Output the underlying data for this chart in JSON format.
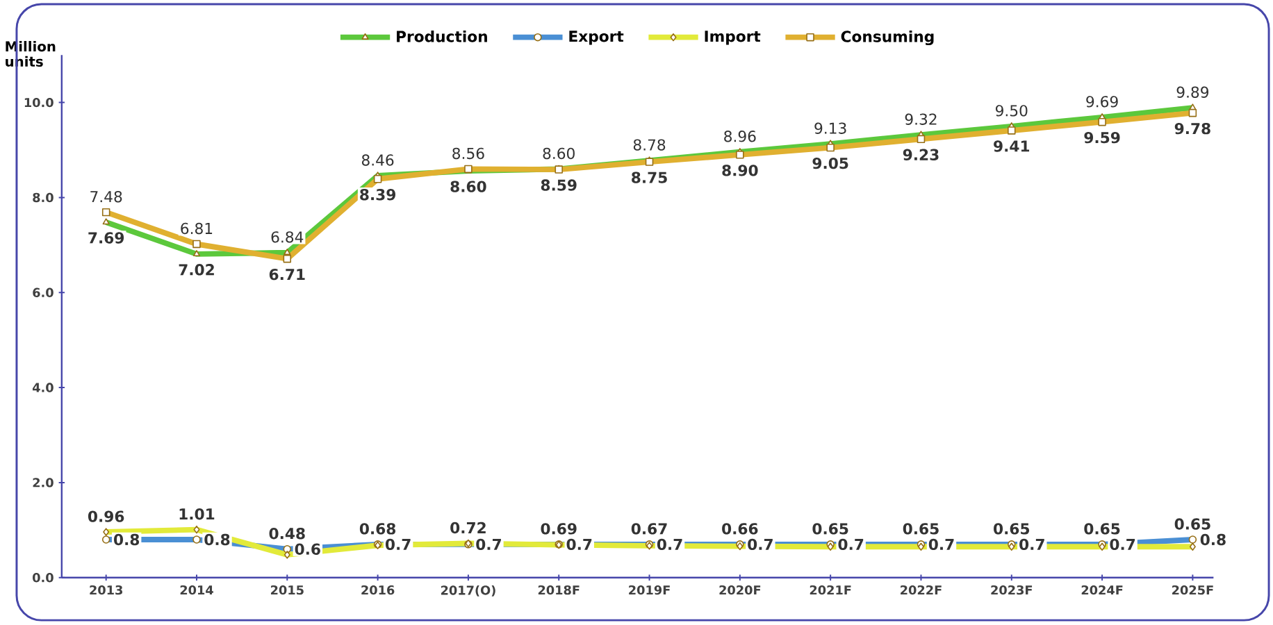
{
  "chart_data": {
    "type": "line",
    "ylabel": "Million units",
    "categories": [
      "2013",
      "2014",
      "2015",
      "2016",
      "2017(O)",
      "2018F",
      "2019F",
      "2020F",
      "2021F",
      "2022F",
      "2023F",
      "2024F",
      "2025F"
    ],
    "ylim": [
      0,
      11
    ],
    "yticks": [
      {
        "value": 0,
        "label": "0.0"
      },
      {
        "value": 2,
        "label": "2.0"
      },
      {
        "value": 4,
        "label": "4.0"
      },
      {
        "value": 6,
        "label": "6.0"
      },
      {
        "value": 8,
        "label": "8.0"
      },
      {
        "value": 10,
        "label": "10.0"
      }
    ],
    "legend": "top",
    "grid": false,
    "series": [
      {
        "name": "Production",
        "color": "#5cc83c",
        "marker": "triangle",
        "values": [
          7.48,
          6.81,
          6.84,
          8.46,
          8.56,
          8.6,
          8.78,
          8.96,
          9.13,
          9.32,
          9.5,
          9.69,
          9.89
        ],
        "value_labels": [
          "7.48",
          "6.81",
          "6.84",
          "8.46",
          "8.56",
          "8.60",
          "8.78",
          "8.96",
          "9.13",
          "9.32",
          "9.50",
          "9.69",
          "9.89"
        ]
      },
      {
        "name": "Export",
        "color": "#4a8fd4",
        "marker": "circle",
        "values": [
          0.8,
          0.8,
          0.6,
          0.7,
          0.7,
          0.7,
          0.7,
          0.7,
          0.7,
          0.7,
          0.7,
          0.7,
          0.8
        ],
        "value_labels": [
          "0.8",
          "0.8",
          "0.6",
          "0.7",
          "0.7",
          "0.7",
          "0.7",
          "0.7",
          "0.7",
          "0.7",
          "0.7",
          "0.7",
          "0.8"
        ]
      },
      {
        "name": "Import",
        "color": "#e2ea3a",
        "marker": "diamond",
        "values": [
          0.96,
          1.01,
          0.48,
          0.68,
          0.72,
          0.69,
          0.67,
          0.66,
          0.65,
          0.65,
          0.65,
          0.65,
          0.65
        ],
        "value_labels": [
          "0.96",
          "1.01",
          "0.48",
          "0.68",
          "0.72",
          "0.69",
          "0.67",
          "0.66",
          "0.65",
          "0.65",
          "0.65",
          "0.65",
          "0.65"
        ]
      },
      {
        "name": "Consuming",
        "color": "#e0b030",
        "marker": "square",
        "values": [
          7.69,
          7.02,
          6.71,
          8.39,
          8.6,
          8.59,
          8.75,
          8.9,
          9.05,
          9.23,
          9.41,
          9.59,
          9.78
        ],
        "value_labels": [
          "7.69",
          "7.02",
          "6.71",
          "8.39",
          "8.60",
          "8.59",
          "8.75",
          "8.90",
          "9.05",
          "9.23",
          "9.41",
          "9.59",
          "9.78"
        ]
      }
    ]
  }
}
